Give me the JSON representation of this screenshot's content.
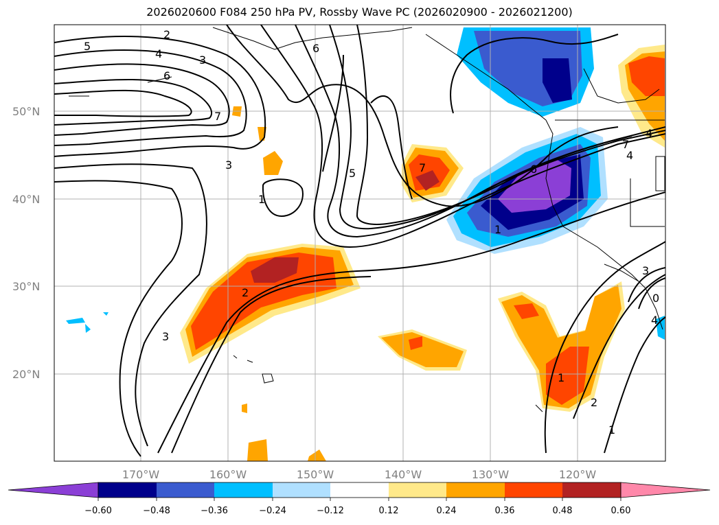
{
  "title": "2026020600 F084 250 hPa PV, Rossby Wave PC (2026020900 - 2026021200)",
  "latitude_labels": [
    "50°N",
    "40°N",
    "30°N",
    "20°N"
  ],
  "longitude_labels": [
    "170°W",
    "160°W",
    "150°W",
    "140°W",
    "130°W",
    "120°W"
  ],
  "contour_labels": [
    "2",
    "5",
    "4",
    "3",
    "6",
    "6",
    "7",
    "3",
    "1",
    "5",
    "7",
    "6",
    "4",
    "1",
    "2",
    "3",
    "7",
    "4",
    "3",
    "0",
    "4",
    "1",
    "2",
    "1"
  ],
  "colorbar": {
    "tick_labels": [
      "−0.60",
      "−0.48",
      "−0.36",
      "−0.24",
      "−0.12",
      "0.12",
      "0.24",
      "0.36",
      "0.48",
      "0.60"
    ],
    "colors": [
      "#8b3fd6",
      "#00008b",
      "#3a5bcf",
      "#00bfff",
      "#b0e0ff",
      "#ffffff",
      "#ffe98a",
      "#ffa500",
      "#ff4500",
      "#b22222",
      "#ff88aa"
    ]
  }
}
